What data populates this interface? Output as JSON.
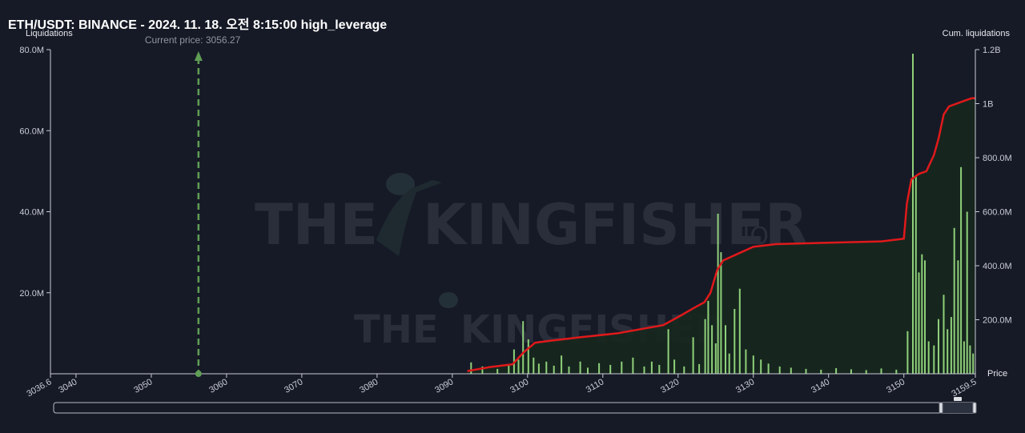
{
  "header": {
    "title": "ETH/USDT: BINANCE - 2024. 11. 18. 오전 8:15:00 high_leverage"
  },
  "watermark": {
    "brand": "THE KINGFISHER",
    "suffix": ".IO"
  },
  "colors": {
    "background": "#161a26",
    "bars": "#8fd07a",
    "bars_minor": "#c9b67a",
    "cum_line": "#e0191b",
    "cum_fill": "#16281e",
    "current_price": "#5f9e55",
    "axis": "#c9ccd6"
  },
  "chart_data": {
    "type": "bar",
    "title": "ETH/USDT: BINANCE - 2024. 11. 18. 오전 8:15:00 high_leverage",
    "xlabel": "Price",
    "ylabel": "Liquidations",
    "y2label": "Cum. liquidations",
    "current_price": 3056.27,
    "current_price_label": "Current price: 3056.27",
    "xlim": [
      3036.6,
      3159.5
    ],
    "ylim": [
      0,
      80000000
    ],
    "y2lim": [
      0,
      1200000000
    ],
    "x_ticks": [
      "3036.6",
      "3040",
      "3050",
      "3060",
      "3070",
      "3080",
      "3090",
      "3100",
      "3110",
      "3120",
      "3130",
      "3140",
      "3150",
      "3159.5"
    ],
    "x_tick_values": [
      3036.6,
      3040,
      3050,
      3060,
      3070,
      3080,
      3090,
      3100,
      3110,
      3120,
      3130,
      3140,
      3150,
      3159.5
    ],
    "y_ticks": [
      "20.0M",
      "40.0M",
      "60.0M",
      "80.0M"
    ],
    "y_tick_values": [
      20000000,
      40000000,
      60000000,
      80000000
    ],
    "y2_ticks": [
      "200.0M",
      "400.0M",
      "600.0M",
      "800.0M",
      "1B",
      "1.2B"
    ],
    "y2_tick_values": [
      200000000,
      400000000,
      600000000,
      800000000,
      1000000000,
      1200000000
    ],
    "grid": false,
    "series": [
      {
        "name": "Liquidations",
        "kind": "bar",
        "x": [
          3092.5,
          3094.0,
          3096.0,
          3097.5,
          3098.2,
          3098.8,
          3099.4,
          3100.1,
          3100.8,
          3101.5,
          3102.5,
          3103.5,
          3104.5,
          3105.5,
          3107.0,
          3108.0,
          3109.5,
          3111.0,
          3112.5,
          3114.0,
          3115.5,
          3116.5,
          3117.5,
          3118.7,
          3119.5,
          3120.8,
          3122.0,
          3122.8,
          3123.6,
          3124.0,
          3124.5,
          3125.0,
          3125.3,
          3125.7,
          3126.3,
          3126.8,
          3127.5,
          3128.2,
          3129.0,
          3130.0,
          3131.0,
          3132.0,
          3133.5,
          3135.0,
          3137.0,
          3139.0,
          3141.0,
          3143.0,
          3145.0,
          3147.0,
          3149.0,
          3150.5,
          3151.2,
          3151.6,
          3152.0,
          3152.4,
          3152.8,
          3153.3,
          3154.0,
          3154.6,
          3155.3,
          3155.8,
          3156.3,
          3156.7,
          3157.2,
          3157.6,
          3158.0,
          3158.4,
          3158.8,
          3159.2
        ],
        "values": [
          2800000,
          1800000,
          1200000,
          2000000,
          6000000,
          3500000,
          13000000,
          8500000,
          4000000,
          2500000,
          3000000,
          2000000,
          4500000,
          1800000,
          3000000,
          1500000,
          2600000,
          2200000,
          3000000,
          4000000,
          1800000,
          3000000,
          2200000,
          11000000,
          3500000,
          1800000,
          9000000,
          2400000,
          13500000,
          18000000,
          12000000,
          7500000,
          39500000,
          30000000,
          12000000,
          5000000,
          16000000,
          21000000,
          6000000,
          4500000,
          3500000,
          2500000,
          1800000,
          1500000,
          1200000,
          1000000,
          1400000,
          1100000,
          900000,
          1300000,
          1000000,
          10500000,
          79000000,
          49000000,
          25000000,
          29500000,
          28000000,
          8000000,
          7000000,
          13500000,
          19500000,
          11000000,
          14000000,
          36000000,
          28000000,
          51000000,
          8000000,
          40000000,
          7000000,
          5000000
        ]
      },
      {
        "name": "Cum. liquidations",
        "kind": "line",
        "x": [
          3092.0,
          3095.0,
          3098.0,
          3099.5,
          3101.0,
          3103.0,
          3107.0,
          3112.0,
          3115.0,
          3118.0,
          3120.0,
          3122.0,
          3123.5,
          3124.3,
          3125.2,
          3126.0,
          3128.0,
          3130.0,
          3133.0,
          3140.0,
          3147.0,
          3150.0,
          3150.4,
          3151.0,
          3152.0,
          3153.0,
          3154.0,
          3154.6,
          3155.3,
          3156.0,
          3157.0,
          3158.0,
          3159.0,
          3159.5
        ],
        "values": [
          10000000,
          25000000,
          35000000,
          80000000,
          115000000,
          122000000,
          135000000,
          150000000,
          165000000,
          180000000,
          210000000,
          242000000,
          265000000,
          300000000,
          385000000,
          420000000,
          445000000,
          470000000,
          480000000,
          485000000,
          490000000,
          500000000,
          630000000,
          720000000,
          740000000,
          750000000,
          810000000,
          870000000,
          960000000,
          990000000,
          1000000000,
          1010000000,
          1020000000,
          1020000000
        ]
      }
    ]
  }
}
